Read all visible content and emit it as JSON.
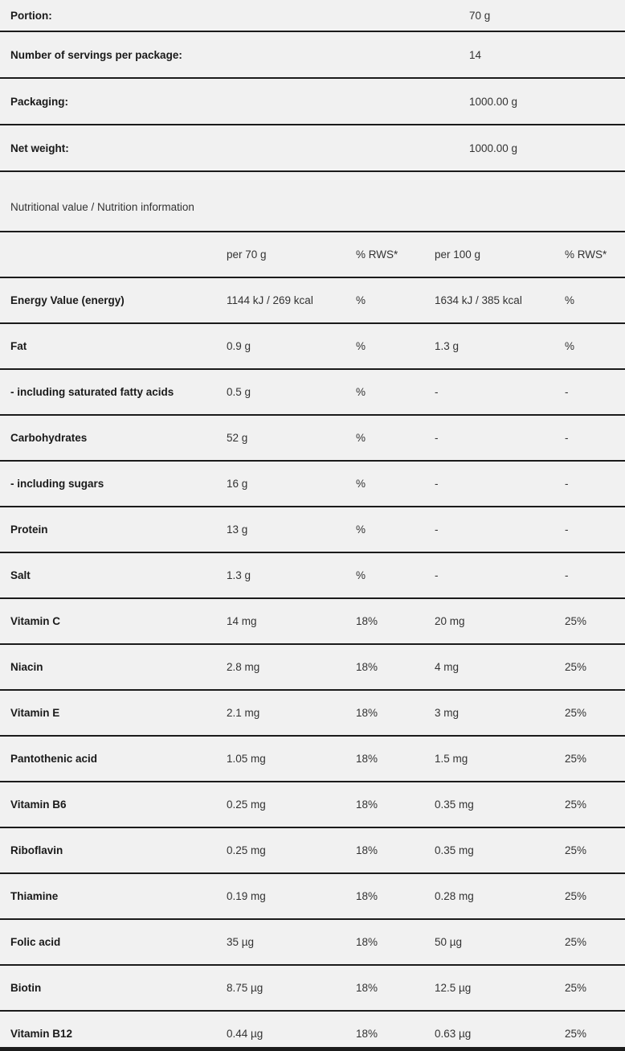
{
  "page": {
    "background_color": "#f1f1f1",
    "divider_color": "#1b1b1b"
  },
  "product_info": {
    "rows": [
      {
        "label": "Portion:",
        "value": "70 g"
      },
      {
        "label": "Number of servings per package:",
        "value": "14"
      },
      {
        "label": "Packaging:",
        "value": "1000.00 g"
      },
      {
        "label": "Net weight:",
        "value": "1000.00 g"
      }
    ]
  },
  "nutrition": {
    "section_title": "Nutritional value / Nutrition information",
    "columns": [
      "",
      "per 70 g",
      "% RWS*",
      "per 100 g",
      "% RWS*"
    ],
    "rows": [
      {
        "name": "Energy Value (energy)",
        "per_portion": "1144 kJ / 269 kcal",
        "rws_portion": "%",
        "per_100g": "1634 kJ / 385 kcal",
        "rws_100g": "%"
      },
      {
        "name": "Fat",
        "per_portion": "0.9 g",
        "rws_portion": "%",
        "per_100g": "1.3 g",
        "rws_100g": "%"
      },
      {
        "name": "- including saturated fatty acids",
        "per_portion": "0.5 g",
        "rws_portion": "%",
        "per_100g": "-",
        "rws_100g": "-"
      },
      {
        "name": "Carbohydrates",
        "per_portion": "52 g",
        "rws_portion": "%",
        "per_100g": "-",
        "rws_100g": "-"
      },
      {
        "name": "- including sugars",
        "per_portion": "16 g",
        "rws_portion": "%",
        "per_100g": "-",
        "rws_100g": "-"
      },
      {
        "name": "Protein",
        "per_portion": "13 g",
        "rws_portion": "%",
        "per_100g": "-",
        "rws_100g": "-"
      },
      {
        "name": "Salt",
        "per_portion": "1.3 g",
        "rws_portion": "%",
        "per_100g": "-",
        "rws_100g": "-"
      },
      {
        "name": "Vitamin C",
        "per_portion": "14 mg",
        "rws_portion": "18%",
        "per_100g": "20 mg",
        "rws_100g": "25%"
      },
      {
        "name": "Niacin",
        "per_portion": "2.8 mg",
        "rws_portion": "18%",
        "per_100g": "4 mg",
        "rws_100g": "25%"
      },
      {
        "name": "Vitamin E",
        "per_portion": "2.1 mg",
        "rws_portion": "18%",
        "per_100g": "3 mg",
        "rws_100g": "25%"
      },
      {
        "name": "Pantothenic acid",
        "per_portion": "1.05 mg",
        "rws_portion": "18%",
        "per_100g": "1.5 mg",
        "rws_100g": "25%"
      },
      {
        "name": "Vitamin B6",
        "per_portion": "0.25 mg",
        "rws_portion": "18%",
        "per_100g": "0.35 mg",
        "rws_100g": "25%"
      },
      {
        "name": "Riboflavin",
        "per_portion": "0.25 mg",
        "rws_portion": "18%",
        "per_100g": "0.35 mg",
        "rws_100g": "25%"
      },
      {
        "name": "Thiamine",
        "per_portion": "0.19 mg",
        "rws_portion": "18%",
        "per_100g": "0.28 mg",
        "rws_100g": "25%"
      },
      {
        "name": "Folic acid",
        "per_portion": "35 µg",
        "rws_portion": "18%",
        "per_100g": "50 µg",
        "rws_100g": "25%"
      },
      {
        "name": "Biotin",
        "per_portion": "8.75 µg",
        "rws_portion": "18%",
        "per_100g": "12.5 µg",
        "rws_100g": "25%"
      },
      {
        "name": "Vitamin B12",
        "per_portion": "0.44 µg",
        "rws_portion": "18%",
        "per_100g": "0.63 µg",
        "rws_100g": "25%"
      }
    ]
  }
}
